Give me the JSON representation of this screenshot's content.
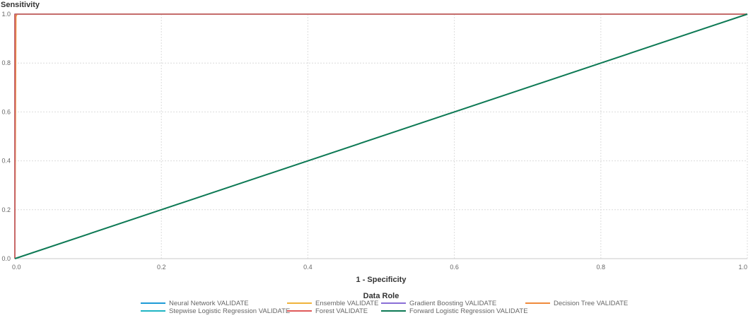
{
  "chart_data": {
    "type": "line",
    "title": "",
    "xlabel": "1 - Specificity",
    "ylabel": "Sensitivity",
    "xlim": [
      0,
      1
    ],
    "ylim": [
      0,
      1
    ],
    "x_ticks": [
      "0.0",
      "0.2",
      "0.4",
      "0.6",
      "0.8",
      "1.0"
    ],
    "y_ticks": [
      "0.0",
      "0.2",
      "0.4",
      "0.6",
      "0.8",
      "1.0"
    ],
    "grid": true,
    "legend": {
      "title": "Data Role",
      "placement": "bottom-center"
    },
    "series": [
      {
        "name": "Neural Network VALIDATE",
        "color": "#1f9bd7",
        "points": [
          [
            0,
            0
          ],
          [
            0,
            1
          ],
          [
            1,
            1
          ]
        ]
      },
      {
        "name": "Ensemble VALIDATE",
        "color": "#f0b43c",
        "points": [
          [
            0,
            0
          ],
          [
            0,
            0.99
          ],
          [
            0.002,
            1
          ],
          [
            1,
            1
          ]
        ]
      },
      {
        "name": "Gradient Boosting VALIDATE",
        "color": "#8a6fd6",
        "points": [
          [
            0,
            0
          ],
          [
            0,
            1
          ],
          [
            1,
            1
          ]
        ]
      },
      {
        "name": "Decision Tree VALIDATE",
        "color": "#f08a3c",
        "points": [
          [
            0,
            0
          ],
          [
            0.0015,
            0.99
          ],
          [
            0.003,
            1
          ],
          [
            1,
            1
          ]
        ]
      },
      {
        "name": "Stepwise Logistic Regression VALIDATE",
        "color": "#1fb5c4",
        "points": [
          [
            0,
            0
          ],
          [
            0,
            1
          ],
          [
            1,
            1
          ]
        ]
      },
      {
        "name": "Forest VALIDATE",
        "color": "#e05a5a",
        "points": [
          [
            0,
            0
          ],
          [
            0,
            1
          ],
          [
            1,
            1
          ]
        ]
      },
      {
        "name": "Forward Logistic Regression VALIDATE",
        "color": "#0e7a55",
        "points": [
          [
            0,
            0
          ],
          [
            1,
            1
          ]
        ]
      }
    ]
  }
}
